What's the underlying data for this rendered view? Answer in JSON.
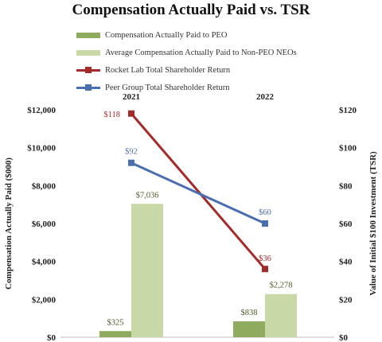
{
  "chart_data": {
    "type": "bar",
    "title": "Compensation Actually Paid vs. TSR",
    "categories": [
      "2021",
      "2022"
    ],
    "y_left": {
      "label": "Compensation Actually Paid ($000)",
      "lim": [
        0,
        12000
      ],
      "ticks": [
        "$0",
        "$2,000",
        "$4,000",
        "$6,000",
        "$8,000",
        "$10,000",
        "$12,000"
      ]
    },
    "y_right": {
      "label": "Value of Initial $100 Investment (TSR)",
      "lim": [
        0,
        120
      ],
      "ticks": [
        "$0",
        "$20",
        "$40",
        "$60",
        "$80",
        "$100",
        "$120"
      ]
    },
    "series": [
      {
        "name": "Compensation Actually Paid to PEO",
        "type": "bar",
        "axis": "left",
        "color": "#8fac5e",
        "values": [
          325,
          838
        ],
        "labels": [
          "$325",
          "$838"
        ],
        "label_color": "#4d5b26"
      },
      {
        "name": "Average Compensation Actually Paid to Non-PEO NEOs",
        "type": "bar",
        "axis": "left",
        "color": "#c8d8a6",
        "values": [
          7036,
          2278
        ],
        "labels": [
          "$7,036",
          "$2,278"
        ],
        "label_color": "#4d5b26"
      },
      {
        "name": "Rocket Lab Total Shareholder Return",
        "type": "line",
        "axis": "right",
        "color": "#a52a2a",
        "values": [
          118,
          36
        ],
        "labels": [
          "$118",
          "$36"
        ],
        "label_color": "#a52a2a"
      },
      {
        "name": "Peer Group Total Shareholder Return",
        "type": "line",
        "axis": "right",
        "color": "#4a6fb0",
        "values": [
          92,
          60
        ],
        "labels": [
          "$92",
          "$60"
        ],
        "label_color": "#4a6fb0"
      }
    ],
    "legend": "top"
  }
}
